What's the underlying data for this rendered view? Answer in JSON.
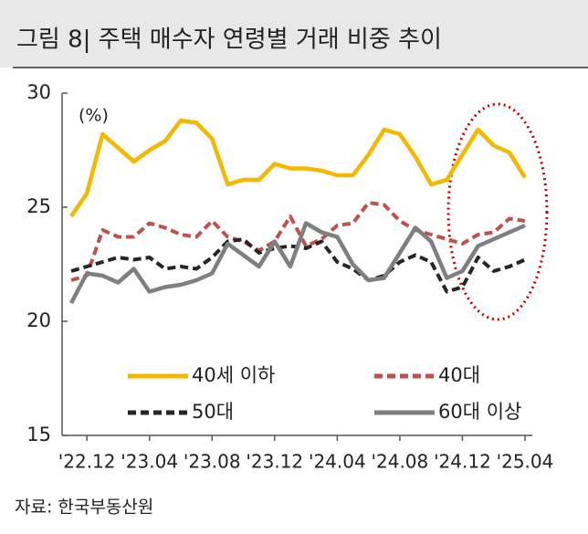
{
  "chart_data": {
    "type": "line",
    "title": "그림 8| 주택 매수자 연령별 거래 비중 추이",
    "unit_label": "(%)",
    "source": "자료: 한국부동산원",
    "categories": [
      null,
      "'22.12",
      null,
      null,
      null,
      "'23.04",
      null,
      null,
      null,
      "'23.08",
      null,
      null,
      null,
      "'23.12",
      null,
      null,
      null,
      "'24.04",
      null,
      null,
      null,
      "'24.08",
      null,
      null,
      null,
      "'24.12",
      null,
      null,
      null,
      "'25.04"
    ],
    "ylim": [
      15,
      30
    ],
    "yticks": [
      15,
      20,
      25,
      30
    ],
    "grid": false,
    "series": [
      {
        "name": "40세 이하",
        "color": "#f5b800",
        "dash": false,
        "values": [
          24.6,
          25.6,
          28.2,
          27.6,
          27.0,
          27.5,
          27.9,
          28.8,
          28.7,
          28.0,
          26.0,
          26.2,
          26.2,
          26.9,
          26.7,
          26.7,
          26.6,
          26.4,
          26.4,
          27.3,
          28.4,
          28.2,
          27.2,
          26.0,
          26.2,
          27.3,
          28.4,
          27.7,
          27.4,
          26.3
        ]
      },
      {
        "name": "40대",
        "color": "#c0504d",
        "dash": true,
        "values": [
          21.8,
          22.0,
          24.0,
          23.7,
          23.7,
          24.3,
          24.1,
          23.8,
          23.7,
          24.4,
          23.7,
          23.5,
          23.1,
          23.5,
          24.6,
          23.3,
          23.6,
          24.2,
          24.3,
          25.2,
          25.1,
          24.4,
          24.0,
          23.8,
          23.6,
          23.4,
          23.8,
          23.9,
          24.5,
          24.4
        ]
      },
      {
        "name": "50대",
        "color": "#262626",
        "dash": true,
        "values": [
          22.2,
          22.4,
          22.6,
          22.8,
          22.7,
          22.8,
          22.3,
          22.4,
          22.3,
          22.8,
          23.5,
          23.6,
          23.0,
          23.2,
          23.3,
          23.2,
          23.5,
          22.6,
          22.3,
          21.8,
          22.0,
          22.6,
          22.9,
          22.6,
          21.3,
          21.5,
          22.8,
          22.2,
          22.4,
          22.7
        ]
      },
      {
        "name": "60대 이상",
        "color": "#7f7f7f",
        "dash": false,
        "values": [
          20.8,
          22.1,
          22.0,
          21.7,
          22.3,
          21.3,
          21.5,
          21.6,
          21.8,
          22.1,
          23.4,
          22.9,
          22.4,
          23.5,
          22.4,
          24.3,
          23.9,
          23.7,
          22.5,
          21.8,
          21.9,
          23.0,
          24.1,
          23.5,
          21.9,
          22.2,
          23.3,
          23.6,
          23.9,
          24.2
        ]
      }
    ]
  }
}
